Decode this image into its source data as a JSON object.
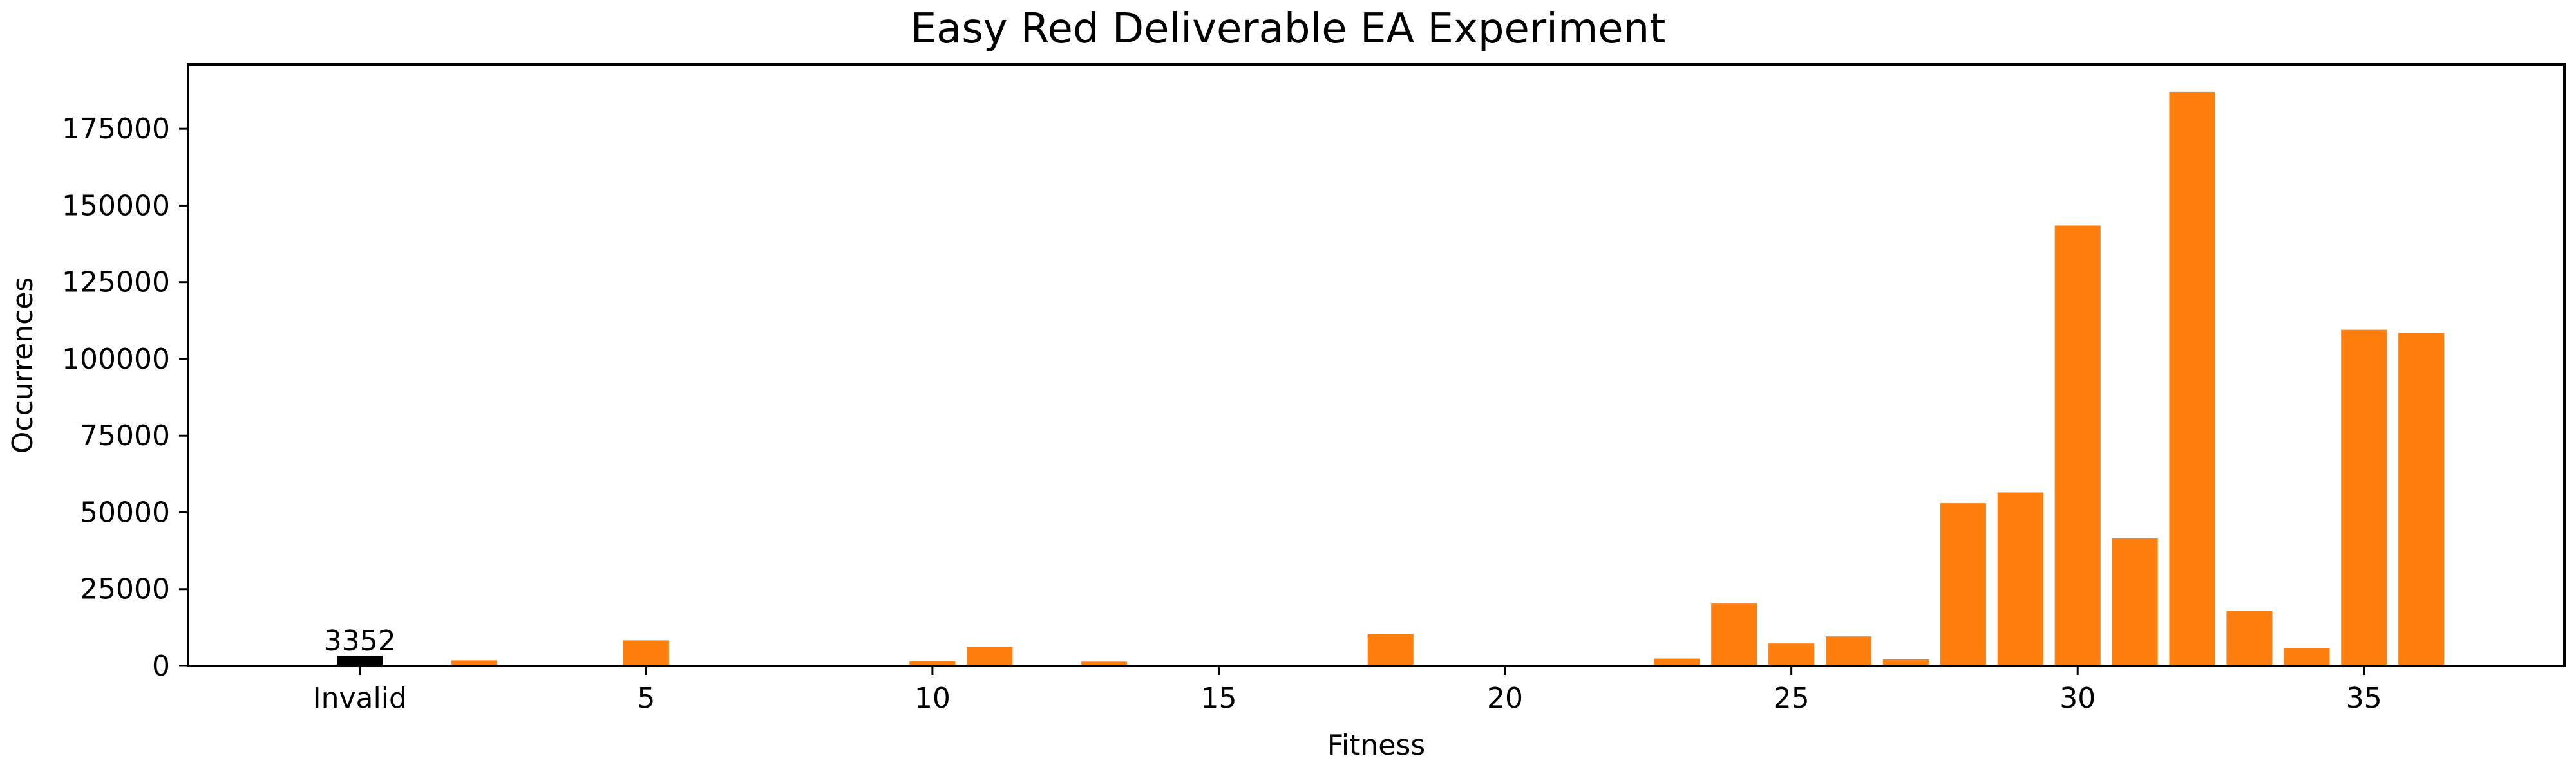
{
  "chart_data": {
    "type": "bar",
    "title": "Easy Red Deliverable EA Experiment",
    "xlabel": "Fitness",
    "ylabel": "Occurrences",
    "xlim": [
      -3,
      38.5
    ],
    "ylim": [
      0,
      196000
    ],
    "xticks": [
      {
        "value": 0,
        "label": "Invalid"
      },
      {
        "value": 5,
        "label": "5"
      },
      {
        "value": 10,
        "label": "10"
      },
      {
        "value": 15,
        "label": "15"
      },
      {
        "value": 20,
        "label": "20"
      },
      {
        "value": 25,
        "label": "25"
      },
      {
        "value": 30,
        "label": "30"
      },
      {
        "value": 35,
        "label": "35"
      }
    ],
    "yticks": [
      0,
      25000,
      50000,
      75000,
      100000,
      125000,
      150000,
      175000
    ],
    "grid": false,
    "legend": "none",
    "colors": {
      "invalid": "#000000",
      "valid": "#ff7f0e",
      "axes": "#000000",
      "background": "#ffffff"
    },
    "series": [
      {
        "category": "invalid",
        "x": [
          0
        ],
        "values": [
          3352
        ],
        "labels": [
          "3352"
        ]
      },
      {
        "category": "valid",
        "x": [
          2,
          3,
          4,
          5,
          6,
          7,
          8,
          9,
          10,
          11,
          12,
          13,
          14,
          15,
          16,
          17,
          18,
          19,
          20,
          21,
          22,
          23,
          24,
          25,
          26,
          27,
          28,
          29,
          30,
          31,
          32,
          33,
          34,
          35,
          36
        ],
        "values": [
          1800,
          0,
          0,
          8300,
          0,
          0,
          0,
          0,
          1500,
          6200,
          0,
          1400,
          0,
          0,
          0,
          400,
          10300,
          0,
          0,
          0,
          0,
          2400,
          20300,
          7300,
          9600,
          2100,
          53000,
          56500,
          143500,
          41500,
          187000,
          18000,
          5800,
          109500,
          108500
        ]
      }
    ]
  }
}
